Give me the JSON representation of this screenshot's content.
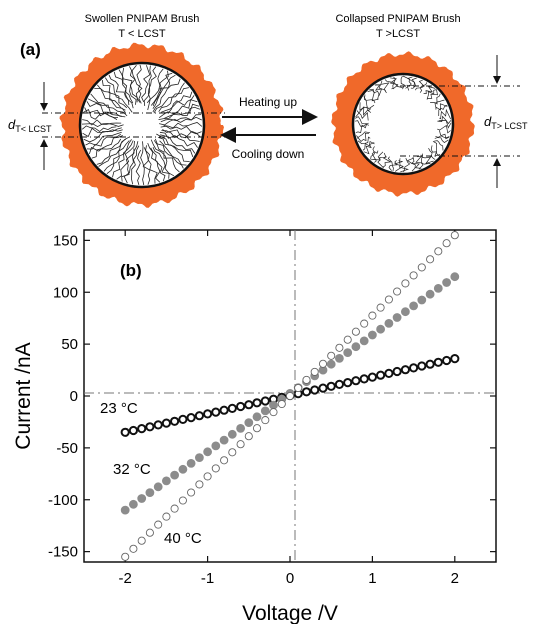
{
  "panel_a": {
    "label": "(a)",
    "left_title": "Swollen PNIPAM Brush",
    "left_condition": "T < LCST",
    "right_title": "Collapsed PNIPAM Brush",
    "right_condition": "T >LCST",
    "heating_label": "Heating up",
    "cooling_label": "Cooling down",
    "d_symbol": "d",
    "left_d_sub": "T< LCST",
    "right_d_sub": "T> LCST",
    "colors": {
      "pore_wall": "#f0692a",
      "brush": "#222222"
    }
  },
  "chart_data": {
    "type": "scatter",
    "panel_label": "(b)",
    "xlabel": "Voltage /V",
    "ylabel": "Current /nA",
    "xlim": [
      -2.5,
      2.5
    ],
    "ylim": [
      -160,
      160
    ],
    "xticks": [
      -2,
      -1,
      0,
      1,
      2
    ],
    "yticks": [
      -150,
      -100,
      -50,
      0,
      50,
      100,
      150
    ],
    "xtick_labels": [
      "-2",
      "-1",
      "0",
      "1",
      "2"
    ],
    "ytick_labels": [
      "-150",
      "-100",
      "-50",
      "0",
      "50",
      "100",
      "150"
    ],
    "x_range": [
      -2,
      2
    ],
    "x_step": 0.1,
    "series": [
      {
        "name": "23 °C",
        "label_text": "23 °C",
        "style": "open-thick",
        "color": "#111111",
        "y_start": -35,
        "y_end": 36
      },
      {
        "name": "32 °C",
        "label_text": "32 °C",
        "style": "filled",
        "color": "#8c8c8c",
        "y_start": -110,
        "y_end": 115
      },
      {
        "name": "40 °C",
        "label_text": "40 °C",
        "style": "open-thin",
        "color": "#666666",
        "y_start": -155,
        "y_end": 155
      }
    ]
  }
}
